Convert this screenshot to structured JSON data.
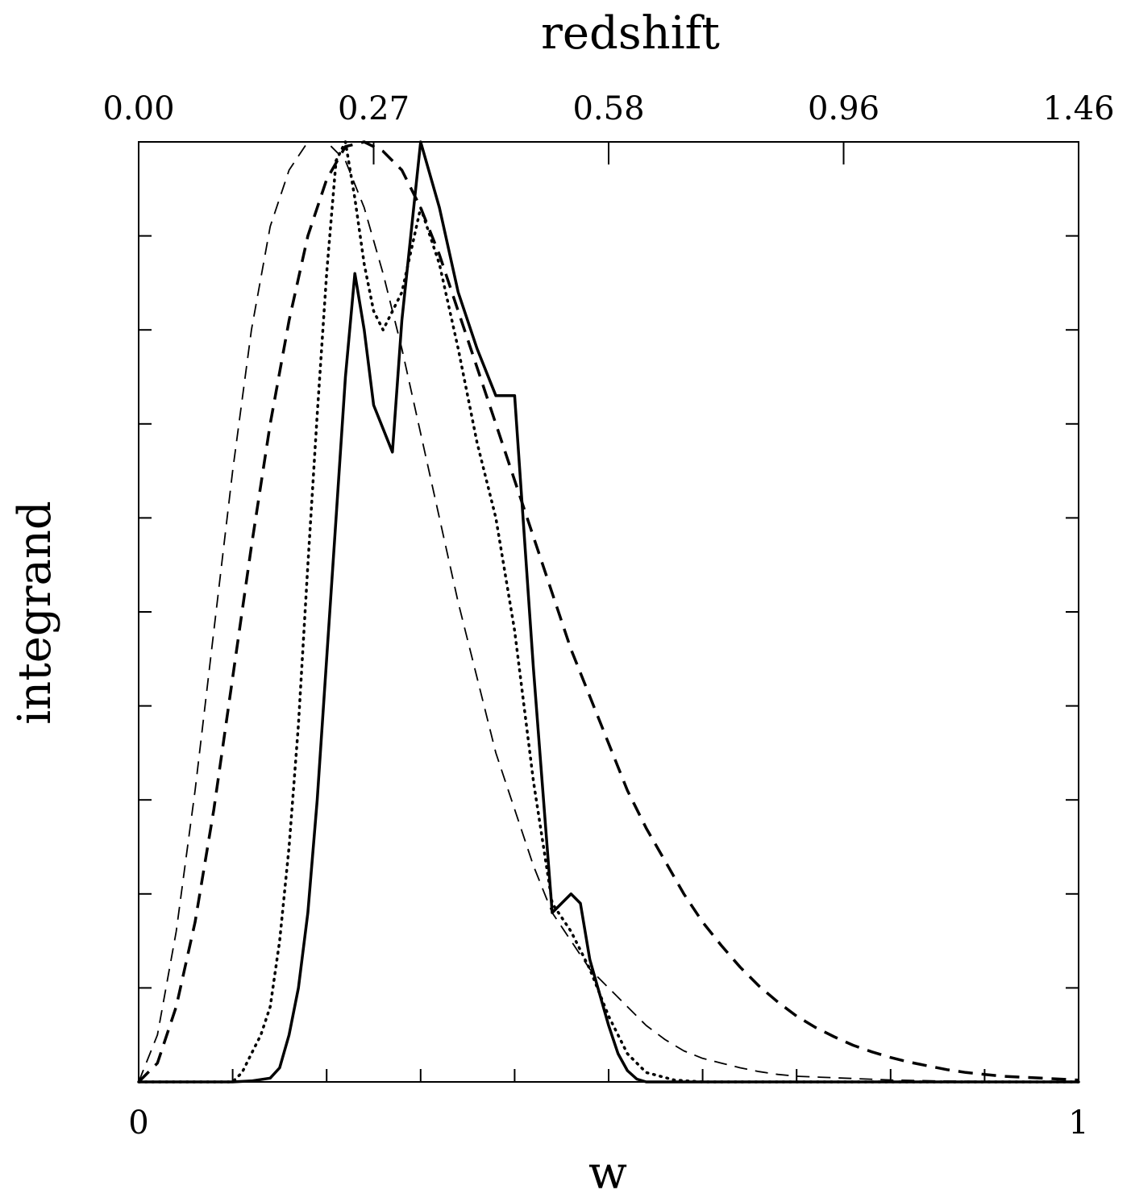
{
  "chart_data": {
    "type": "line",
    "xlabel": "w",
    "ylabel": "integrand",
    "top_axis_label": "redshift",
    "xlim": [
      0,
      1
    ],
    "ylim": [
      0,
      1
    ],
    "x_tick_labels": [
      "0",
      "1"
    ],
    "x_tick_label_positions": [
      0,
      1
    ],
    "top_tick_labels": [
      "0.00",
      "0.27",
      "0.58",
      "0.96",
      "1.46"
    ],
    "top_tick_positions": [
      0,
      0.25,
      0.5,
      0.75,
      1.0
    ],
    "x_minor_ticks": [
      0.1,
      0.2,
      0.3,
      0.4,
      0.5,
      0.6,
      0.7,
      0.8,
      0.9
    ],
    "y_minor_ticks": [
      0.1,
      0.2,
      0.3,
      0.4,
      0.5,
      0.6,
      0.7,
      0.8,
      0.9
    ],
    "grid": false,
    "legend": "none",
    "series": [
      {
        "style": "solid-thick",
        "color": "#000000",
        "x": [
          0,
          0.1,
          0.12,
          0.14,
          0.15,
          0.16,
          0.17,
          0.18,
          0.19,
          0.2,
          0.21,
          0.22,
          0.23,
          0.24,
          0.25,
          0.27,
          0.28,
          0.3,
          0.32,
          0.34,
          0.36,
          0.38,
          0.4,
          0.42,
          0.44,
          0.46,
          0.47,
          0.48,
          0.5,
          0.51,
          0.52,
          0.53,
          0.54,
          0.55,
          0.6,
          1.0
        ],
        "y": [
          0,
          0,
          0.001,
          0.004,
          0.015,
          0.05,
          0.1,
          0.18,
          0.3,
          0.45,
          0.6,
          0.75,
          0.86,
          0.8,
          0.72,
          0.67,
          0.81,
          1.0,
          0.93,
          0.84,
          0.78,
          0.73,
          0.73,
          0.44,
          0.18,
          0.2,
          0.19,
          0.13,
          0.06,
          0.03,
          0.012,
          0.003,
          0,
          0,
          0,
          0
        ]
      },
      {
        "style": "dotted",
        "color": "#000000",
        "x": [
          0,
          0.1,
          0.11,
          0.12,
          0.13,
          0.14,
          0.15,
          0.16,
          0.17,
          0.18,
          0.19,
          0.2,
          0.21,
          0.22,
          0.23,
          0.24,
          0.25,
          0.26,
          0.28,
          0.3,
          0.32,
          0.34,
          0.36,
          0.38,
          0.4,
          0.42,
          0.44,
          0.46,
          0.48,
          0.5,
          0.52,
          0.54,
          0.57,
          0.6,
          1.0
        ],
        "y": [
          0,
          0,
          0.01,
          0.03,
          0.05,
          0.08,
          0.15,
          0.25,
          0.38,
          0.55,
          0.71,
          0.86,
          0.98,
          1.0,
          0.94,
          0.87,
          0.82,
          0.8,
          0.84,
          0.93,
          0.87,
          0.78,
          0.68,
          0.6,
          0.48,
          0.32,
          0.19,
          0.16,
          0.12,
          0.07,
          0.03,
          0.01,
          0.002,
          0,
          0
        ]
      },
      {
        "style": "dashed-thick",
        "color": "#000000",
        "x": [
          0,
          0.02,
          0.04,
          0.06,
          0.08,
          0.1,
          0.12,
          0.14,
          0.16,
          0.18,
          0.2,
          0.22,
          0.24,
          0.26,
          0.28,
          0.3,
          0.32,
          0.34,
          0.36,
          0.38,
          0.4,
          0.42,
          0.44,
          0.46,
          0.48,
          0.5,
          0.52,
          0.54,
          0.56,
          0.58,
          0.6,
          0.62,
          0.64,
          0.66,
          0.68,
          0.7,
          0.72,
          0.74,
          0.76,
          0.78,
          0.8,
          0.82,
          0.84,
          0.86,
          0.88,
          0.9,
          0.92,
          0.94,
          0.96,
          0.98,
          1.0
        ],
        "y": [
          0,
          0.02,
          0.08,
          0.17,
          0.29,
          0.43,
          0.57,
          0.7,
          0.81,
          0.9,
          0.96,
          0.995,
          1.0,
          0.99,
          0.97,
          0.93,
          0.88,
          0.82,
          0.76,
          0.7,
          0.64,
          0.58,
          0.52,
          0.46,
          0.41,
          0.36,
          0.31,
          0.27,
          0.235,
          0.2,
          0.17,
          0.145,
          0.122,
          0.102,
          0.085,
          0.07,
          0.058,
          0.048,
          0.039,
          0.032,
          0.026,
          0.021,
          0.017,
          0.013,
          0.01,
          0.008,
          0.006,
          0.005,
          0.004,
          0.003,
          0.002
        ]
      },
      {
        "style": "dashed-thin",
        "color": "#000000",
        "x": [
          0,
          0.02,
          0.04,
          0.06,
          0.08,
          0.1,
          0.12,
          0.14,
          0.16,
          0.18,
          0.2,
          0.22,
          0.24,
          0.26,
          0.28,
          0.3,
          0.32,
          0.34,
          0.36,
          0.38,
          0.4,
          0.42,
          0.44,
          0.46,
          0.48,
          0.5,
          0.52,
          0.54,
          0.56,
          0.58,
          0.6,
          0.62,
          0.64,
          0.66,
          0.68,
          0.7,
          0.75,
          0.8,
          0.85,
          0.9,
          0.95,
          1.0
        ],
        "y": [
          0,
          0.05,
          0.16,
          0.31,
          0.48,
          0.65,
          0.8,
          0.91,
          0.97,
          1.0,
          1.0,
          0.98,
          0.93,
          0.86,
          0.78,
          0.69,
          0.6,
          0.51,
          0.43,
          0.35,
          0.29,
          0.23,
          0.18,
          0.15,
          0.12,
          0.1,
          0.08,
          0.06,
          0.045,
          0.033,
          0.025,
          0.02,
          0.015,
          0.011,
          0.008,
          0.006,
          0.004,
          0.002,
          0.001,
          0.0005,
          0.0002,
          0
        ]
      }
    ]
  }
}
